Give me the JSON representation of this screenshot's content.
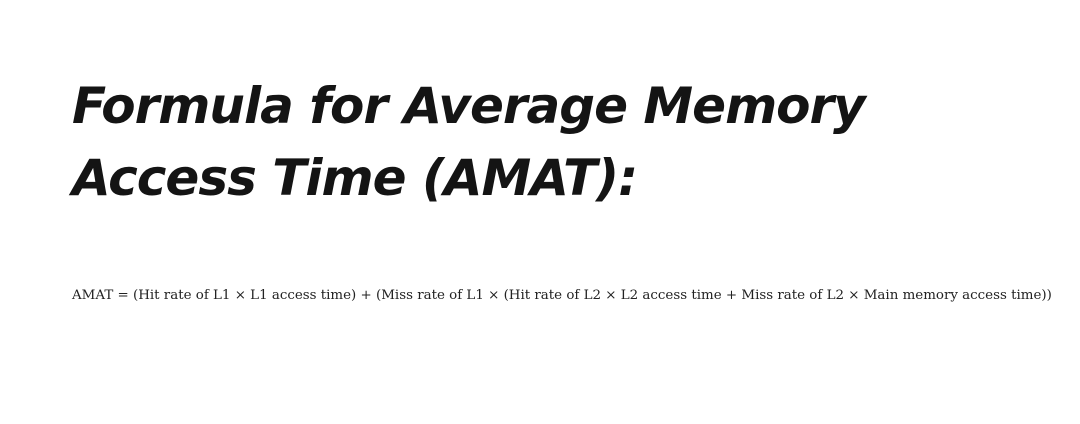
{
  "heading": {
    "line1": "Formula for Average Memory",
    "line2": "Access Time (AMAT):"
  },
  "formula": {
    "text": "AMAT = (Hit rate of L1 × L1 access time) + (Miss rate of L1 × (Hit rate of L2 × L2 access time + Miss rate of L2 × Main memory access time))"
  }
}
